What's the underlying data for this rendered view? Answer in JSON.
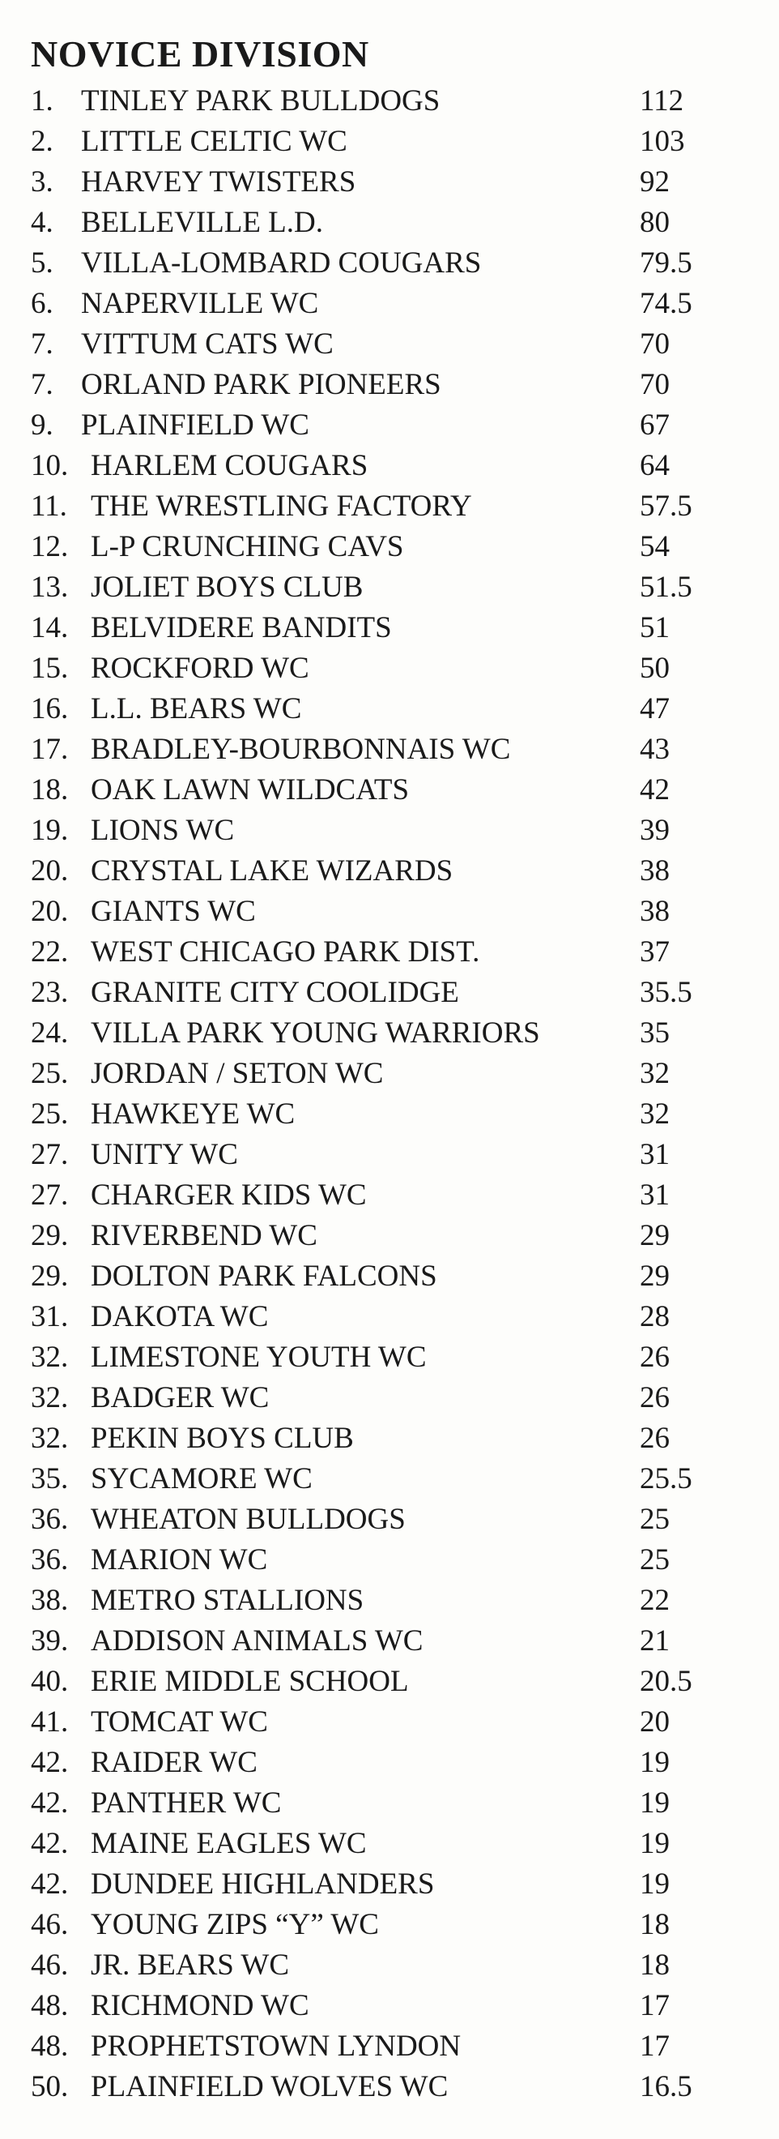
{
  "title": "NOVICE DIVISION",
  "standings": [
    {
      "rank": "1.",
      "team": "TINLEY PARK BULLDOGS",
      "points": "112"
    },
    {
      "rank": "2.",
      "team": "LITTLE CELTIC WC",
      "points": "103"
    },
    {
      "rank": "3.",
      "team": "HARVEY TWISTERS",
      "points": "92"
    },
    {
      "rank": "4.",
      "team": "BELLEVILLE L.D.",
      "points": "80"
    },
    {
      "rank": "5.",
      "team": "VILLA-LOMBARD COUGARS",
      "points": "79.5"
    },
    {
      "rank": "6.",
      "team": "NAPERVILLE WC",
      "points": "74.5"
    },
    {
      "rank": "7.",
      "team": "VITTUM CATS WC",
      "points": "70"
    },
    {
      "rank": "7.",
      "team": "ORLAND PARK PIONEERS",
      "points": "70"
    },
    {
      "rank": "9.",
      "team": "PLAINFIELD WC",
      "points": "67"
    },
    {
      "rank": "10.",
      "team": "HARLEM COUGARS",
      "points": "64"
    },
    {
      "rank": "11.",
      "team": "THE WRESTLING FACTORY",
      "points": "57.5"
    },
    {
      "rank": "12.",
      "team": "L-P CRUNCHING CAVS",
      "points": "54"
    },
    {
      "rank": "13.",
      "team": "JOLIET BOYS CLUB",
      "points": "51.5"
    },
    {
      "rank": "14.",
      "team": "BELVIDERE BANDITS",
      "points": "51"
    },
    {
      "rank": "15.",
      "team": "ROCKFORD WC",
      "points": "50"
    },
    {
      "rank": "16.",
      "team": "L.L. BEARS WC",
      "points": "47"
    },
    {
      "rank": "17.",
      "team": "BRADLEY-BOURBONNAIS WC",
      "points": "43"
    },
    {
      "rank": "18.",
      "team": "OAK LAWN WILDCATS",
      "points": "42"
    },
    {
      "rank": "19.",
      "team": "LIONS WC",
      "points": "39"
    },
    {
      "rank": "20.",
      "team": "CRYSTAL LAKE WIZARDS",
      "points": "38"
    },
    {
      "rank": "20.",
      "team": "GIANTS WC",
      "points": "38"
    },
    {
      "rank": "22.",
      "team": "WEST CHICAGO PARK DIST.",
      "points": "37"
    },
    {
      "rank": "23.",
      "team": "GRANITE CITY COOLIDGE",
      "points": "35.5"
    },
    {
      "rank": "24.",
      "team": "VILLA PARK YOUNG WARRIORS",
      "points": "35"
    },
    {
      "rank": "25.",
      "team": "JORDAN / SETON WC",
      "points": "32"
    },
    {
      "rank": "25.",
      "team": "HAWKEYE WC",
      "points": "32"
    },
    {
      "rank": "27.",
      "team": "UNITY WC",
      "points": "31"
    },
    {
      "rank": "27.",
      "team": "CHARGER KIDS WC",
      "points": "31"
    },
    {
      "rank": "29.",
      "team": "RIVERBEND WC",
      "points": "29"
    },
    {
      "rank": "29.",
      "team": "DOLTON PARK FALCONS",
      "points": "29"
    },
    {
      "rank": "31.",
      "team": "DAKOTA WC",
      "points": "28"
    },
    {
      "rank": "32.",
      "team": "LIMESTONE YOUTH WC",
      "points": "26"
    },
    {
      "rank": "32.",
      "team": "BADGER WC",
      "points": "26"
    },
    {
      "rank": "32.",
      "team": "PEKIN BOYS CLUB",
      "points": "26"
    },
    {
      "rank": "35.",
      "team": "SYCAMORE WC",
      "points": "25.5"
    },
    {
      "rank": "36.",
      "team": "WHEATON BULLDOGS",
      "points": "25"
    },
    {
      "rank": "36.",
      "team": "MARION WC",
      "points": "25"
    },
    {
      "rank": "38.",
      "team": "METRO STALLIONS",
      "points": "22"
    },
    {
      "rank": "39.",
      "team": "ADDISON ANIMALS WC",
      "points": "21"
    },
    {
      "rank": "40.",
      "team": "ERIE MIDDLE SCHOOL",
      "points": "20.5"
    },
    {
      "rank": "41.",
      "team": "TOMCAT WC",
      "points": "20"
    },
    {
      "rank": "42.",
      "team": "RAIDER WC",
      "points": "19"
    },
    {
      "rank": "42.",
      "team": "PANTHER WC",
      "points": "19"
    },
    {
      "rank": "42.",
      "team": "MAINE EAGLES WC",
      "points": "19"
    },
    {
      "rank": "42.",
      "team": "DUNDEE HIGHLANDERS",
      "points": "19"
    },
    {
      "rank": "46.",
      "team": "YOUNG ZIPS “Y” WC",
      "points": "18"
    },
    {
      "rank": "46.",
      "team": "JR. BEARS WC",
      "points": "18"
    },
    {
      "rank": "48.",
      "team": "RICHMOND WC",
      "points": "17"
    },
    {
      "rank": "48.",
      "team": "PROPHETSTOWN LYNDON",
      "points": "17"
    },
    {
      "rank": "50.",
      "team": "PLAINFIELD WOLVES WC",
      "points": "16.5"
    }
  ]
}
